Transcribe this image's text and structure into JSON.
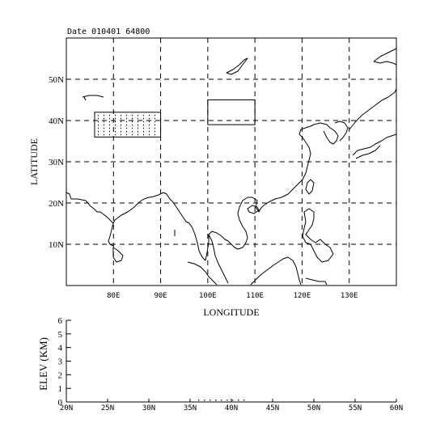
{
  "header": {
    "date_label": "Date 010401   64800"
  },
  "map": {
    "xlabel": "LONGITUDE",
    "ylabel": "LATITUDE",
    "lon_range": [
      70,
      140
    ],
    "lat_range": [
      0,
      60
    ],
    "lon_ticks": [
      {
        "value": 80,
        "label": "80E"
      },
      {
        "value": 90,
        "label": "90E"
      },
      {
        "value": 100,
        "label": "100E"
      },
      {
        "value": 110,
        "label": "110E"
      },
      {
        "value": 120,
        "label": "120E"
      },
      {
        "value": 130,
        "label": "130E"
      }
    ],
    "lat_ticks": [
      {
        "value": 10,
        "label": "10N"
      },
      {
        "value": 20,
        "label": "20N"
      },
      {
        "value": 30,
        "label": "30N"
      },
      {
        "value": 40,
        "label": "40N"
      },
      {
        "value": 50,
        "label": "50N"
      }
    ],
    "regions": [
      {
        "lon": [
          76,
          90
        ],
        "lat": [
          36,
          42
        ],
        "dotted": true
      },
      {
        "lon": [
          100,
          110
        ],
        "lat": [
          39,
          45
        ],
        "dotted": false
      }
    ]
  },
  "elevation": {
    "ylabel": "ELEV (KM)",
    "ylim": [
      0,
      6
    ],
    "y_ticks": [
      "0",
      "1",
      "2",
      "3",
      "4",
      "5",
      "6"
    ],
    "x_range": [
      20,
      60
    ],
    "x_ticks": [
      "20N",
      "25N",
      "30N",
      "35N",
      "40N",
      "45N",
      "50N",
      "55N",
      "60N"
    ],
    "dots_lat": [
      36,
      42
    ]
  }
}
